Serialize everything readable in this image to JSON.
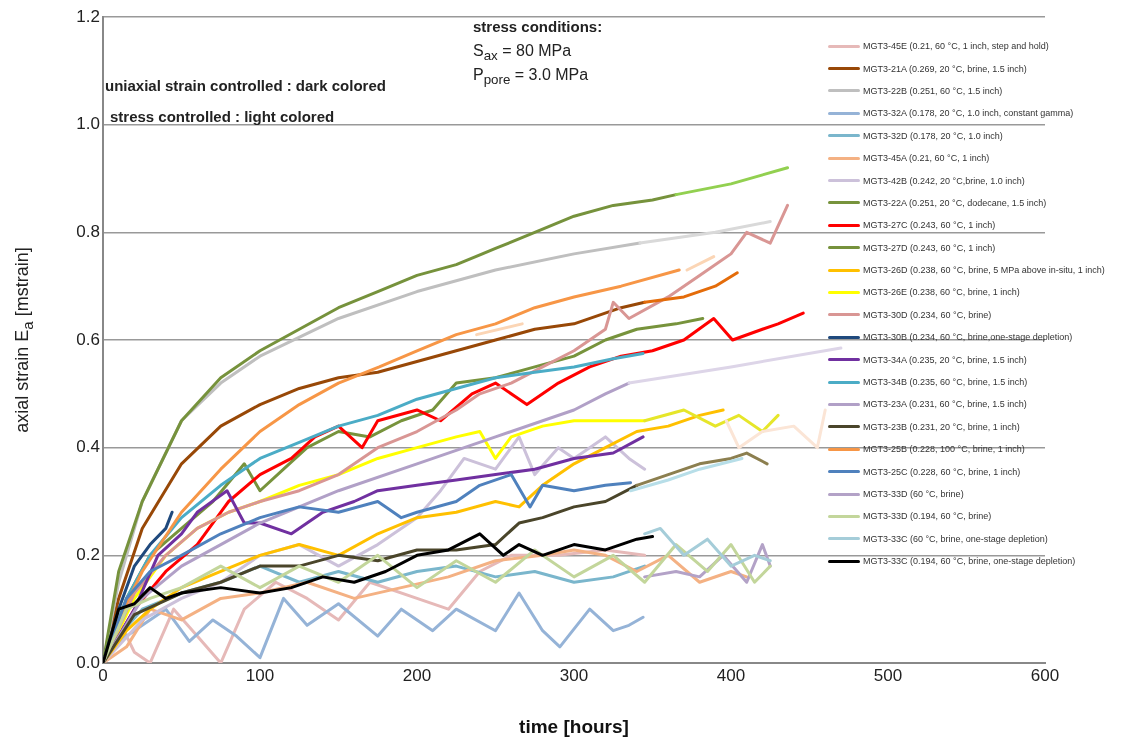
{
  "chart_data": {
    "type": "line",
    "xlabel": "time [hours]",
    "ylabel": "axial strain E$_{a}$ [mstrain]",
    "xlim": [
      0,
      600
    ],
    "xticks": [
      0,
      100,
      200,
      300,
      400,
      500,
      600
    ],
    "ylim": [
      0,
      1.2
    ],
    "yticks": [
      {
        "value": 0,
        "label": "0.0"
      },
      {
        "value": 0.2,
        "label": "0.2"
      },
      {
        "value": 0.4,
        "label": "0.4"
      },
      {
        "value": 0.6,
        "label": "0.6"
      },
      {
        "value": 0.8,
        "label": "0.8"
      },
      {
        "value": 1,
        "label": "1.0"
      },
      {
        "value": 1.2,
        "label": "1.2"
      }
    ],
    "grid": "y",
    "legend": "top right",
    "marker": "none",
    "line_style": "solid",
    "annotations": [
      "uniaxial strain controlled : dark colored",
      "stress controlled : light colored",
      "stress conditions:",
      "S$_{ax}$ = 80 MPa",
      "P$_{pore}$ = 3.0 MPa"
    ],
    "series": [
      {
        "name": "MGT3-45E (0.21, 60 °C, 1 inch, step and hold)",
        "color": "#e6b9b8",
        "x": [
          0,
          10,
          20,
          30,
          45,
          60,
          75,
          90,
          110,
          130,
          150,
          170,
          200,
          220,
          240,
          260,
          290,
          320,
          345
        ],
        "values": [
          0,
          0.08,
          0.02,
          0,
          0.1,
          0.05,
          0,
          0.1,
          0.15,
          0.12,
          0.08,
          0.15,
          0.12,
          0.1,
          0.17,
          0.2,
          0.2,
          0.21,
          0.2
        ]
      },
      {
        "name": "MGT3-21A (0.269, 20 °C, brine, 1.5 inch)",
        "color": "#984807",
        "x": [
          0,
          10,
          25,
          50,
          75,
          100,
          125,
          150,
          175,
          200,
          225,
          250,
          275,
          300,
          330,
          345
        ],
        "values": [
          0,
          0.12,
          0.25,
          0.37,
          0.44,
          0.48,
          0.51,
          0.53,
          0.54,
          0.56,
          0.58,
          0.6,
          0.62,
          0.63,
          0.66,
          0.67
        ]
      },
      {
        "name": "MGT3-22B (0.251, 60 °C, 1.5 inch)",
        "color": "#bfbfbf",
        "x": [
          0,
          10,
          25,
          50,
          75,
          100,
          150,
          200,
          250,
          300,
          342
        ],
        "values": [
          0,
          0.15,
          0.3,
          0.45,
          0.52,
          0.57,
          0.64,
          0.69,
          0.73,
          0.76,
          0.78
        ]
      },
      {
        "name": "MGT3-32A (0.178, 20 °C, 1.0 inch, constant gamma)",
        "color": "#95b3d7",
        "x": [
          0,
          10,
          25,
          40,
          55,
          70,
          85,
          100,
          115,
          130,
          150,
          175,
          190,
          210,
          225,
          250,
          265,
          280,
          291,
          310,
          325,
          335,
          344
        ],
        "values": [
          0,
          0.04,
          0.07,
          0.1,
          0.04,
          0.08,
          0.05,
          0.01,
          0.12,
          0.07,
          0.11,
          0.05,
          0.1,
          0.06,
          0.1,
          0.06,
          0.13,
          0.06,
          0.03,
          0.1,
          0.06,
          0.07,
          0.085
        ]
      },
      {
        "name": "MGT3-32D (0.178, 20 °C, 1.0 inch)",
        "color": "#7ab6cc",
        "x": [
          0,
          10,
          25,
          50,
          75,
          100,
          125,
          150,
          175,
          200,
          225,
          250,
          275,
          300,
          325,
          345
        ],
        "values": [
          0,
          0.05,
          0.1,
          0.13,
          0.15,
          0.18,
          0.15,
          0.17,
          0.15,
          0.17,
          0.18,
          0.16,
          0.17,
          0.15,
          0.16,
          0.18
        ]
      },
      {
        "name": "MGT3-45A (0.21, 60 °C, 1 inch)",
        "color": "#f4b183",
        "x": [
          0,
          15,
          30,
          50,
          75,
          100,
          130,
          160,
          190,
          220,
          250,
          280,
          300,
          320,
          340,
          360,
          380,
          400,
          410
        ],
        "values": [
          0,
          0.03,
          0.1,
          0.08,
          0.12,
          0.13,
          0.15,
          0.12,
          0.14,
          0.16,
          0.19,
          0.2,
          0.21,
          0.2,
          0.17,
          0.2,
          0.15,
          0.17,
          0.16
        ]
      },
      {
        "name": "MGT3-42B (0.242, 20 °C,brine, 1.0 inch)",
        "color": "#ccc1da",
        "x": [
          0,
          25,
          50,
          75,
          100,
          125,
          150,
          175,
          200,
          215,
          230,
          250,
          265,
          275,
          290,
          300,
          320,
          335,
          345
        ],
        "values": [
          0,
          0.08,
          0.12,
          0.15,
          0.2,
          0.22,
          0.18,
          0.22,
          0.27,
          0.32,
          0.38,
          0.36,
          0.42,
          0.35,
          0.4,
          0.38,
          0.42,
          0.38,
          0.36
        ]
      },
      {
        "name": "MGT3-22A (0.251, 20 °C, dodecane, 1.5 inch)",
        "color": "#77933c",
        "x": [
          0,
          15,
          30,
          50,
          70,
          90,
          100,
          115,
          130,
          150,
          170,
          190,
          210,
          225,
          250,
          275,
          300,
          320,
          340,
          365,
          382
        ],
        "values": [
          0,
          0.12,
          0.2,
          0.25,
          0.3,
          0.37,
          0.32,
          0.36,
          0.4,
          0.43,
          0.42,
          0.45,
          0.47,
          0.52,
          0.53,
          0.55,
          0.57,
          0.6,
          0.62,
          0.63,
          0.64
        ]
      },
      {
        "name": "MGT3-27C (0.243, 60 °C, 1 inch)",
        "color": "#ff0000",
        "x": [
          0,
          20,
          40,
          60,
          80,
          100,
          120,
          135,
          150,
          165,
          175,
          200,
          215,
          235,
          250,
          270,
          290,
          310,
          330,
          350,
          370,
          389,
          401,
          420,
          430,
          446
        ],
        "values": [
          0,
          0.1,
          0.17,
          0.22,
          0.3,
          0.35,
          0.38,
          0.42,
          0.44,
          0.4,
          0.45,
          0.47,
          0.45,
          0.5,
          0.52,
          0.48,
          0.52,
          0.55,
          0.57,
          0.58,
          0.6,
          0.64,
          0.6,
          0.62,
          0.63,
          0.65
        ]
      },
      {
        "name": "MGT3-27D (0.243, 60 °C, 1 inch)",
        "color": "#76923c",
        "x": [
          0,
          10,
          25,
          50,
          75,
          100,
          125,
          150,
          175,
          200,
          225,
          250,
          275,
          300,
          325,
          350,
          365
        ],
        "values": [
          0,
          0.17,
          0.3,
          0.45,
          0.53,
          0.58,
          0.62,
          0.66,
          0.69,
          0.72,
          0.74,
          0.77,
          0.8,
          0.83,
          0.85,
          0.86,
          0.87
        ]
      },
      {
        "name": "MGT3-26D (0.238, 60 °C, brine, 5 MPa above in-situ, 1 inch)",
        "color": "#ffc000",
        "x": [
          0,
          15,
          30,
          50,
          75,
          100,
          125,
          150,
          175,
          200,
          225,
          250,
          265,
          280,
          300,
          320,
          340,
          360,
          380,
          395
        ],
        "values": [
          0,
          0.06,
          0.1,
          0.14,
          0.17,
          0.2,
          0.22,
          0.2,
          0.24,
          0.27,
          0.28,
          0.3,
          0.29,
          0.33,
          0.37,
          0.4,
          0.43,
          0.44,
          0.46,
          0.47
        ]
      },
      {
        "name": "MGT3-26E (0.238, 60 °C, brine, 1 inch)",
        "color": "#ffff00",
        "x": [
          0,
          20,
          40,
          60,
          80,
          100,
          125,
          150,
          175,
          200,
          225,
          240,
          250,
          260,
          280,
          300,
          320,
          345
        ],
        "values": [
          0,
          0.12,
          0.2,
          0.25,
          0.28,
          0.3,
          0.33,
          0.35,
          0.38,
          0.4,
          0.42,
          0.43,
          0.38,
          0.42,
          0.44,
          0.45,
          0.45,
          0.45
        ]
      },
      {
        "name": "MGT3-30D (0.234, 60 °C, brine)",
        "color": "#d99694",
        "x": [
          0,
          20,
          40,
          60,
          80,
          100,
          125,
          150,
          175,
          200,
          225,
          240,
          260,
          280,
          300,
          320,
          325,
          335,
          360,
          380,
          400,
          410,
          425,
          436
        ],
        "values": [
          0,
          0.13,
          0.2,
          0.25,
          0.28,
          0.3,
          0.32,
          0.35,
          0.4,
          0.43,
          0.47,
          0.5,
          0.52,
          0.55,
          0.58,
          0.62,
          0.67,
          0.64,
          0.68,
          0.72,
          0.76,
          0.8,
          0.78,
          0.85
        ]
      },
      {
        "name": "MGT3-30B (0.234, 60 °C, brine,one-stage depletion)",
        "color": "#1f497d",
        "x": [
          0,
          10,
          20,
          30,
          40,
          44
        ],
        "values": [
          0,
          0.1,
          0.18,
          0.22,
          0.25,
          0.28
        ]
      },
      {
        "name": "MGT3-34A (0.235, 20 °C, brine, 1.5 inch)",
        "color": "#7030a0",
        "x": [
          0,
          20,
          35,
          50,
          60,
          79,
          90,
          100,
          120,
          140,
          160,
          175,
          200,
          225,
          250,
          275,
          300,
          325,
          344
        ],
        "values": [
          0,
          0.1,
          0.2,
          0.24,
          0.28,
          0.32,
          0.26,
          0.26,
          0.24,
          0.28,
          0.3,
          0.32,
          0.33,
          0.34,
          0.35,
          0.36,
          0.38,
          0.39,
          0.42
        ]
      },
      {
        "name": "MGT3-34B (0.235, 60 °C, brine, 1.5 inch)",
        "color": "#4bacc6",
        "x": [
          0,
          15,
          30,
          50,
          75,
          100,
          125,
          150,
          175,
          200,
          225,
          250,
          275,
          300,
          325,
          344
        ],
        "values": [
          0,
          0.12,
          0.2,
          0.27,
          0.33,
          0.38,
          0.41,
          0.44,
          0.46,
          0.49,
          0.51,
          0.53,
          0.54,
          0.55,
          0.565,
          0.575
        ]
      },
      {
        "name": "MGT3-23A (0.231, 60 °C, brine, 1.5 inch)",
        "color": "#b1a0c7",
        "x": [
          0,
          25,
          50,
          75,
          100,
          150,
          200,
          250,
          300,
          320,
          335
        ],
        "values": [
          0,
          0.12,
          0.18,
          0.22,
          0.26,
          0.32,
          0.37,
          0.42,
          0.47,
          0.5,
          0.52
        ]
      },
      {
        "name": "MGT3-23B (0.231, 20 °C, brine, 1 inch)",
        "color": "#4a452a",
        "x": [
          0,
          20,
          50,
          75,
          100,
          125,
          150,
          175,
          200,
          225,
          250,
          265,
          280,
          300,
          320,
          340
        ],
        "values": [
          0,
          0.09,
          0.13,
          0.15,
          0.18,
          0.18,
          0.2,
          0.19,
          0.21,
          0.21,
          0.22,
          0.26,
          0.27,
          0.29,
          0.3,
          0.33
        ]
      },
      {
        "name": "MGT3-25B (0.228, 100 °C, brine, 1 inch)",
        "color": "#f79646",
        "x": [
          0,
          10,
          25,
          50,
          75,
          100,
          125,
          150,
          176,
          200,
          225,
          250,
          275,
          300,
          330,
          367
        ],
        "values": [
          0,
          0.08,
          0.17,
          0.28,
          0.36,
          0.43,
          0.48,
          0.52,
          0.55,
          0.58,
          0.61,
          0.63,
          0.66,
          0.68,
          0.7,
          0.73
        ]
      },
      {
        "name": "MGT3-25C (0.228, 60 °C, brine, 1 inch)",
        "color": "#4f81bd",
        "x": [
          0,
          15,
          30,
          50,
          75,
          100,
          125,
          150,
          175,
          190,
          200,
          225,
          240,
          260,
          272,
          280,
          300,
          320,
          336
        ],
        "values": [
          0,
          0.12,
          0.17,
          0.2,
          0.24,
          0.27,
          0.29,
          0.28,
          0.3,
          0.27,
          0.28,
          0.3,
          0.33,
          0.35,
          0.29,
          0.33,
          0.32,
          0.33,
          0.335
        ]
      },
      {
        "name": "MGT3-33D (60 °C, brine)",
        "color": "#b3a2c7",
        "x": [
          345,
          365,
          380,
          395,
          410,
          420,
          425
        ],
        "values": [
          0.16,
          0.17,
          0.16,
          0.2,
          0.15,
          0.22,
          0.18
        ]
      },
      {
        "name": "MGT3-33D (0.194, 60 °C, brine)",
        "color": "#c3d69b",
        "x": [
          0,
          15,
          30,
          50,
          75,
          100,
          125,
          150,
          175,
          200,
          225,
          250,
          275,
          300,
          325,
          345,
          365,
          385,
          400,
          415,
          425
        ],
        "values": [
          0,
          0.1,
          0.12,
          0.14,
          0.18,
          0.14,
          0.18,
          0.15,
          0.2,
          0.14,
          0.19,
          0.15,
          0.21,
          0.16,
          0.2,
          0.15,
          0.22,
          0.17,
          0.22,
          0.15,
          0.18
        ]
      },
      {
        "name": "MGT3-33C (60 °C, brine, one-stage depletion)",
        "color": "#a5cdd9",
        "x": [
          345,
          355,
          370,
          385,
          400,
          415,
          425
        ],
        "values": [
          0.24,
          0.25,
          0.2,
          0.23,
          0.18,
          0.2,
          0.19
        ]
      },
      {
        "name": "MGT3-33C (0.194, 60 °C, brine, one-stage depletion)",
        "color": "#000000",
        "x": [
          0,
          10,
          20,
          30,
          40,
          50,
          75,
          100,
          120,
          140,
          160,
          180,
          200,
          220,
          240,
          255,
          265,
          280,
          300,
          320,
          340,
          350
        ],
        "values": [
          0,
          0.1,
          0.11,
          0.14,
          0.12,
          0.13,
          0.14,
          0.13,
          0.14,
          0.16,
          0.15,
          0.17,
          0.2,
          0.21,
          0.24,
          0.2,
          0.22,
          0.2,
          0.22,
          0.21,
          0.23,
          0.235
        ]
      },
      {
        "color": "#92d050",
        "x": [
          365,
          400,
          436
        ],
        "values": [
          0.87,
          0.89,
          0.92
        ]
      },
      {
        "color": "#d9d9d9",
        "x": [
          342,
          390,
          425
        ],
        "values": [
          0.78,
          0.8,
          0.82
        ]
      },
      {
        "color": "#e46c0a",
        "x": [
          345,
          370,
          390,
          404
        ],
        "values": [
          0.67,
          0.68,
          0.7,
          0.725
        ]
      },
      {
        "color": "#fbd5b5",
        "x": [
          238,
          267,
          268,
          372,
          389
        ],
        "values": [
          0.61,
          0.63,
          null,
          0.73,
          0.755
        ]
      },
      {
        "color": "#e6e62a",
        "x": [
          345,
          370,
          390,
          405,
          420,
          430
        ],
        "values": [
          0.45,
          0.47,
          0.44,
          0.46,
          0.43,
          0.46
        ]
      },
      {
        "color": "#ddd5e8",
        "x": [
          335,
          400,
          470
        ],
        "values": [
          0.52,
          0.55,
          0.585
        ]
      },
      {
        "color": "#fbe5d6",
        "x": [
          397,
          405,
          420,
          440,
          455,
          460
        ],
        "values": [
          0.45,
          0.4,
          0.43,
          0.44,
          0.4,
          0.47
        ]
      },
      {
        "color": "#8c7f4f",
        "x": [
          340,
          360,
          380,
          400,
          410,
          423
        ],
        "values": [
          0.33,
          0.35,
          0.37,
          0.38,
          0.39,
          0.37
        ]
      },
      {
        "color": "#b7dee8",
        "x": [
          336,
          360,
          380,
          407
        ],
        "values": [
          0.32,
          0.34,
          0.36,
          0.38
        ]
      }
    ]
  }
}
